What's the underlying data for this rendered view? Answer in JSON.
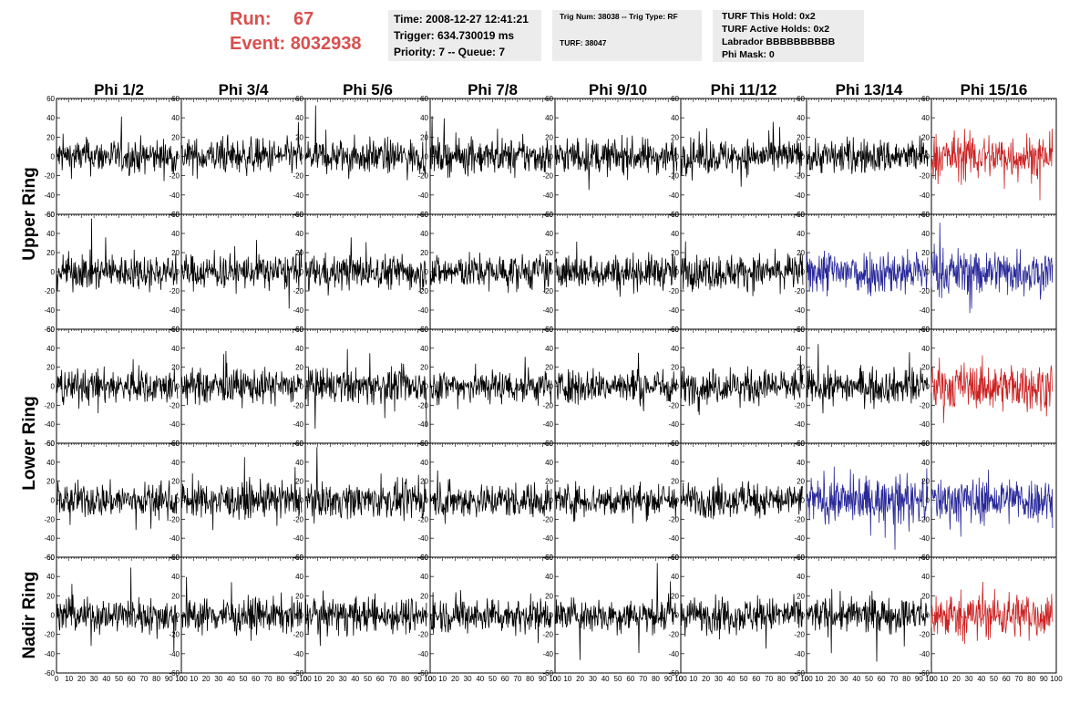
{
  "header": {
    "run_label": "Run:",
    "run_value": "67",
    "event_label": "Event:",
    "event_value": "8032938"
  },
  "info1": {
    "time": "Time: 2008-12-27 12:41:21",
    "trigger": "Trigger: 634.730019 ms",
    "priority": "Priority: 7 -- Queue: 7"
  },
  "info2": {
    "trig": "Trig Num: 38038 -- Trig Type: RF",
    "turf": "TURF: 38047"
  },
  "info3": {
    "hold": "TURF This Hold: 0x2",
    "active": "TURF Active Holds: 0x2",
    "labrador": "Labrador BBBBBBBBBB",
    "phimask": "Phi Mask: 0"
  },
  "colors": {
    "normal": "#000000",
    "red": "#cc2222",
    "blue": "#28289a",
    "accent": "#d9504e"
  },
  "chart_data": {
    "type": "line",
    "columns": [
      "Phi 1/2",
      "Phi 3/4",
      "Phi 5/6",
      "Phi 7/8",
      "Phi 9/10",
      "Phi 11/12",
      "Phi 13/14",
      "Phi 15/16"
    ],
    "row_groups": [
      "Upper Ring",
      "Lower Ring",
      "Nadir Ring"
    ],
    "rows": 5,
    "xlim": [
      0,
      100
    ],
    "ylim": [
      -60,
      60
    ],
    "y_ticks": [
      "60",
      "40",
      "20",
      "0",
      "-20",
      "-40",
      "-60"
    ],
    "x_ticks": [
      "0",
      "10",
      "20",
      "30",
      "40",
      "50",
      "60",
      "70",
      "80",
      "90",
      "100"
    ],
    "highlight": [
      {
        "row": 0,
        "col": 7,
        "color": "red"
      },
      {
        "row": 1,
        "col": 6,
        "color": "blue"
      },
      {
        "row": 1,
        "col": 7,
        "color": "blue"
      },
      {
        "row": 2,
        "col": 7,
        "color": "red"
      },
      {
        "row": 3,
        "col": 6,
        "color": "blue"
      },
      {
        "row": 3,
        "col": 7,
        "color": "blue"
      },
      {
        "row": 4,
        "col": 7,
        "color": "red"
      }
    ]
  }
}
